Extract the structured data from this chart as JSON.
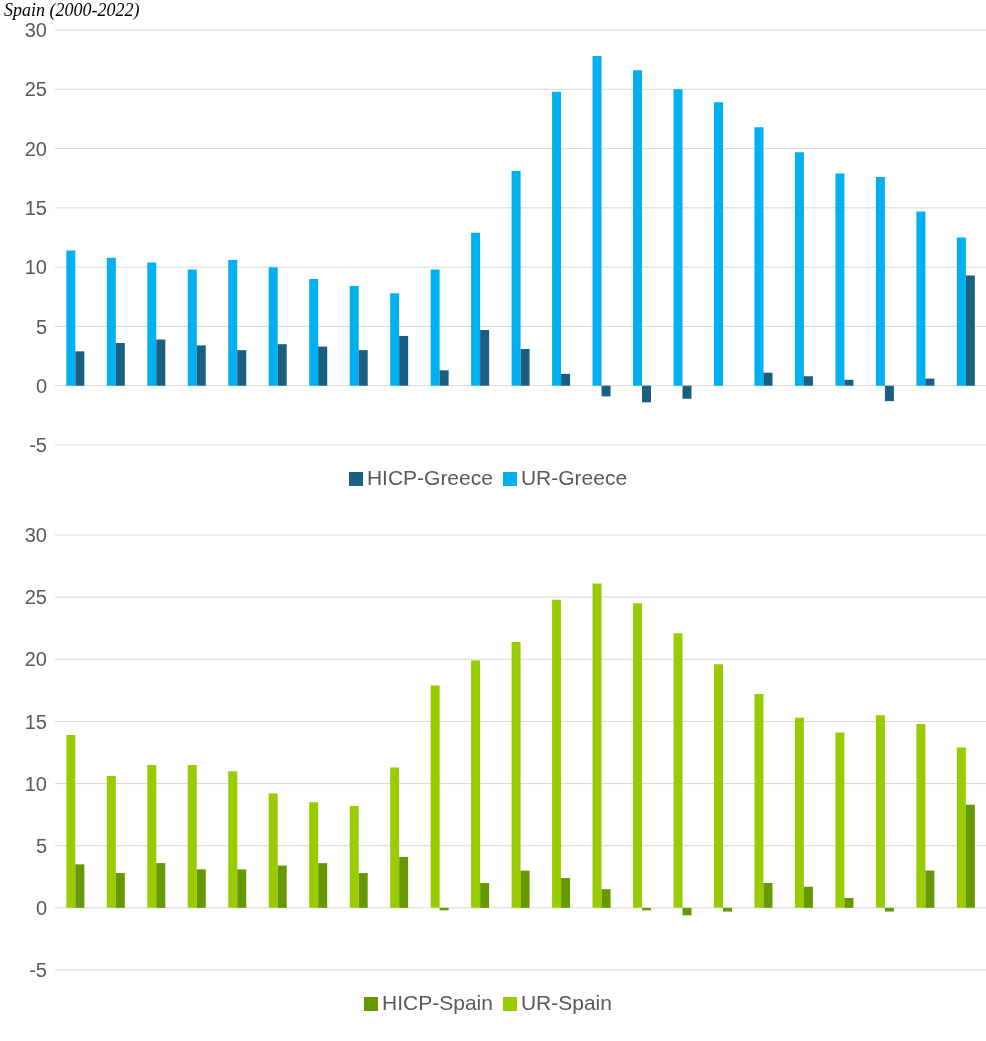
{
  "chart_data": [
    {
      "type": "bar",
      "title": "Spain (2000-2022)",
      "categories": [
        null,
        null,
        null,
        null,
        null,
        null,
        null,
        null,
        null,
        null,
        null,
        null,
        null,
        null,
        null,
        null,
        null,
        null,
        null,
        null,
        null,
        null,
        null
      ],
      "series": [
        {
          "name": "UR-Greece",
          "color": "#00b0f0",
          "values": [
            11.4,
            10.8,
            10.4,
            9.8,
            10.6,
            10.0,
            9.0,
            8.4,
            7.8,
            9.8,
            12.9,
            18.1,
            24.8,
            27.8,
            26.6,
            25.0,
            23.9,
            21.8,
            19.7,
            17.9,
            17.6,
            14.7,
            12.5
          ]
        },
        {
          "name": "HICP-Greece",
          "color": "#1a5e82",
          "values": [
            2.9,
            3.6,
            3.9,
            3.4,
            3.0,
            3.5,
            3.3,
            3.0,
            4.2,
            1.3,
            4.7,
            3.1,
            1.0,
            -0.9,
            -1.4,
            -1.1,
            0.0,
            1.1,
            0.8,
            0.5,
            -1.3,
            0.6,
            9.3
          ]
        }
      ],
      "ylim": [
        -5,
        30
      ],
      "yticks": [
        -5,
        0,
        5,
        10,
        15,
        20,
        25,
        30
      ],
      "grid": "y",
      "legend": "bottom",
      "tick_labels": "y"
    },
    {
      "type": "bar",
      "categories": [
        null,
        null,
        null,
        null,
        null,
        null,
        null,
        null,
        null,
        null,
        null,
        null,
        null,
        null,
        null,
        null,
        null,
        null,
        null,
        null,
        null,
        null,
        null
      ],
      "series": [
        {
          "name": "UR-Spain",
          "color": "#99cc00",
          "values": [
            13.9,
            10.6,
            11.5,
            11.5,
            11.0,
            9.2,
            8.5,
            8.2,
            11.3,
            17.9,
            19.9,
            21.4,
            24.8,
            26.1,
            24.5,
            22.1,
            19.6,
            17.2,
            15.3,
            14.1,
            15.5,
            14.8,
            12.9
          ]
        },
        {
          "name": "HICP-Spain",
          "color": "#669900",
          "values": [
            3.5,
            2.8,
            3.6,
            3.1,
            3.1,
            3.4,
            3.6,
            2.8,
            4.1,
            -0.2,
            2.0,
            3.0,
            2.4,
            1.5,
            -0.2,
            -0.6,
            -0.3,
            2.0,
            1.7,
            0.8,
            -0.3,
            3.0,
            8.3
          ]
        }
      ],
      "ylim": [
        -5,
        30
      ],
      "yticks": [
        -5,
        0,
        5,
        10,
        15,
        20,
        25,
        30
      ],
      "grid": "y",
      "legend": "bottom",
      "tick_labels": "y"
    }
  ]
}
